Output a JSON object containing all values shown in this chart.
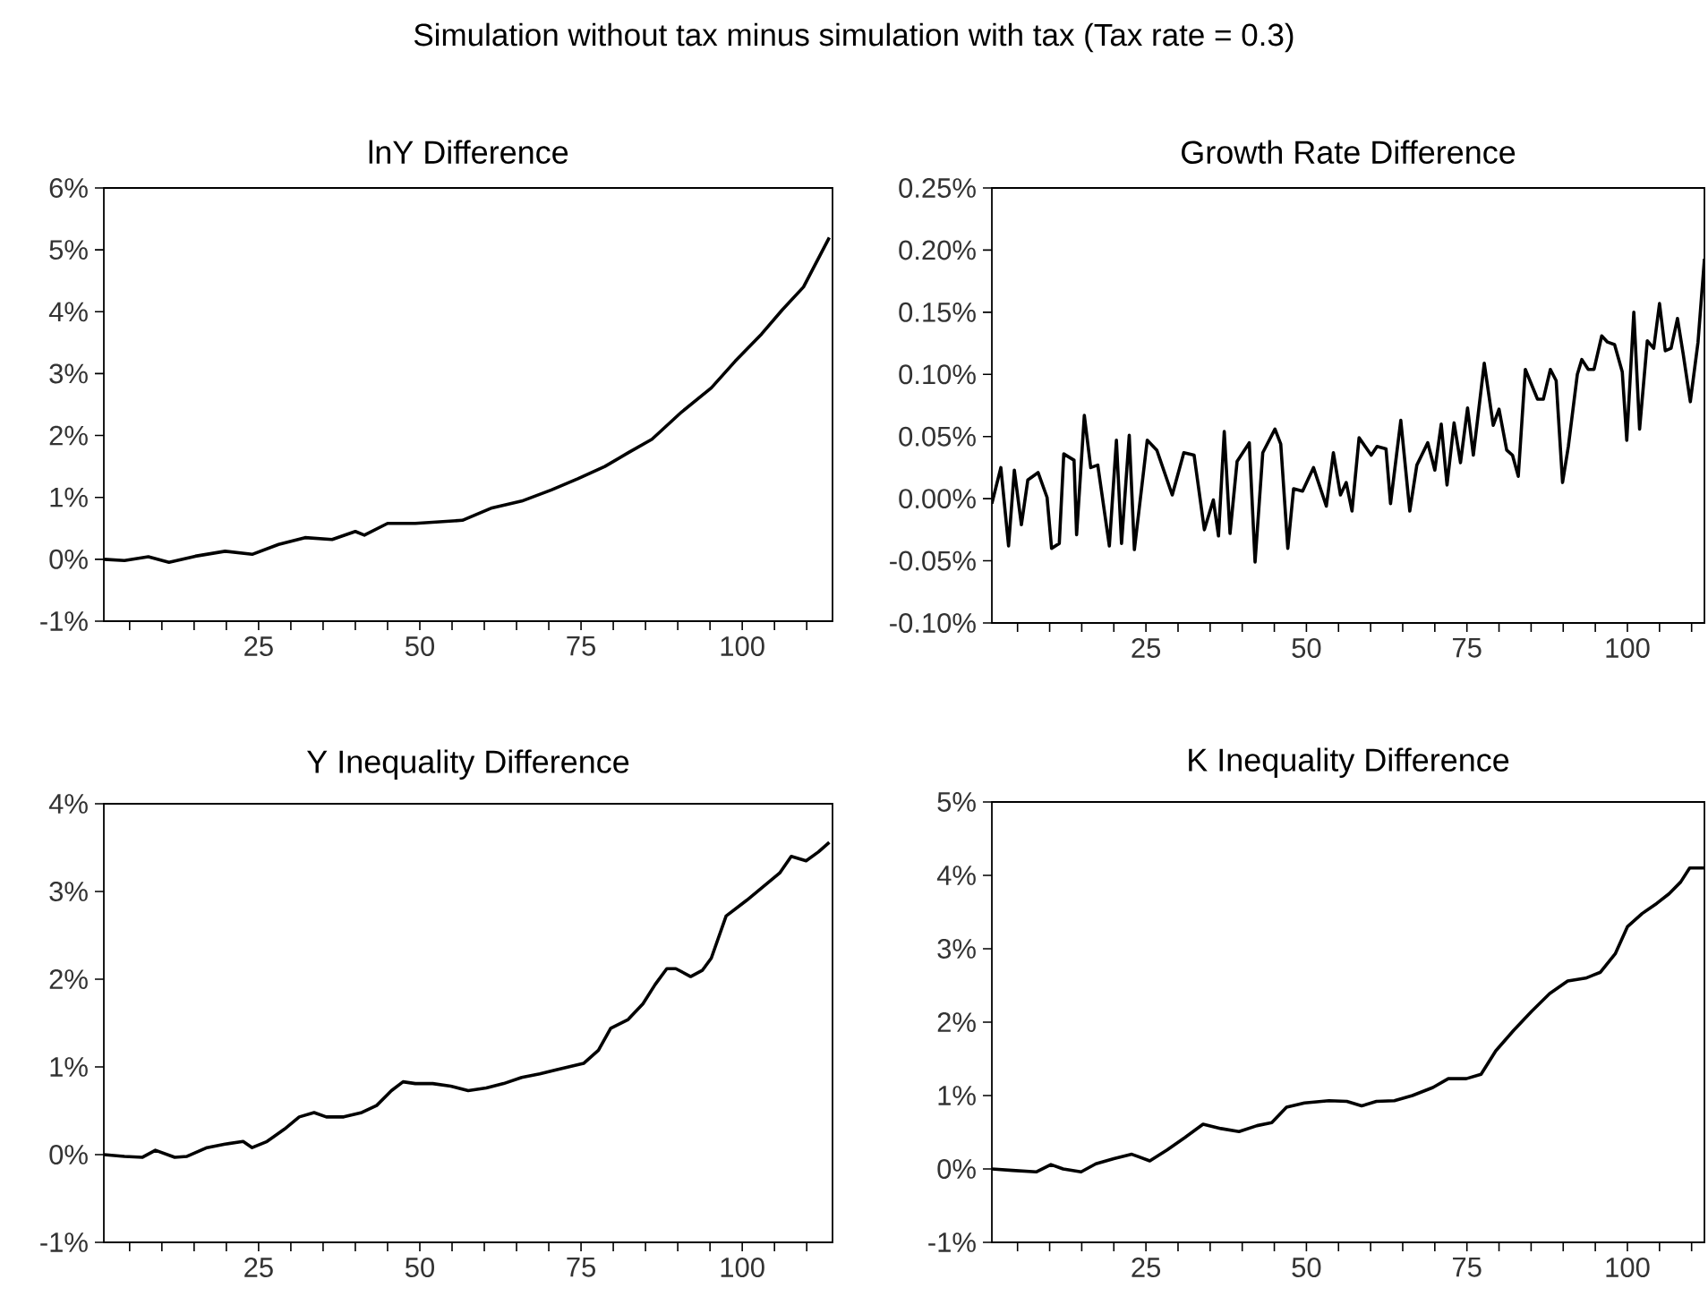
{
  "chart_data": [
    {
      "type": "line",
      "title": "Simulation without tax minus simulation with tax (Tax rate = 0.3)",
      "subtitle": "lnY Difference",
      "color": "#000000",
      "xlim": [
        1,
        114
      ],
      "ylim": [
        -1,
        6
      ],
      "xticks": [
        {
          "value": 5,
          "label": null
        },
        {
          "value": 10,
          "label": null
        },
        {
          "value": 15,
          "label": null
        },
        {
          "value": 20,
          "label": null
        },
        25,
        {
          "value": 30,
          "label": null
        },
        {
          "value": 35,
          "label": null
        },
        {
          "value": 40,
          "label": null
        },
        {
          "value": 45,
          "label": null
        },
        50,
        {
          "value": 55,
          "label": null
        },
        {
          "value": 60,
          "label": null
        },
        {
          "value": 65,
          "label": null
        },
        {
          "value": 70,
          "label": null
        },
        75,
        {
          "value": 80,
          "label": null
        },
        {
          "value": 85,
          "label": null
        },
        {
          "value": 90,
          "label": null
        },
        {
          "value": 95,
          "label": null
        },
        100,
        {
          "value": 105,
          "label": null
        },
        {
          "value": 110,
          "label": null
        }
      ],
      "yticks": [
        {
          "value": -1,
          "label": "-1%"
        },
        {
          "value": 0,
          "label": "0%"
        },
        {
          "value": 1,
          "label": "1%"
        },
        {
          "value": 2,
          "label": "2%"
        },
        {
          "value": 3,
          "label": "3%"
        },
        {
          "value": 4,
          "label": "4%"
        },
        {
          "value": 5,
          "label": "5%"
        },
        {
          "value": 6,
          "label": "6%"
        }
      ],
      "x": [
        1,
        4.2,
        7.9,
        11.1,
        15.2,
        19.8,
        24,
        28.1,
        32.2,
        36.4,
        40,
        41.4,
        45,
        49.3,
        56.6,
        61.2,
        65.8,
        70.4,
        74.5,
        78.7,
        82.3,
        86,
        90.6,
        95.2,
        98.9,
        103,
        106.2,
        109.5,
        113.5
      ],
      "values": [
        0,
        -0.02,
        0.04,
        -0.05,
        0.05,
        0.13,
        0.08,
        0.24,
        0.35,
        0.32,
        0.45,
        0.39,
        0.58,
        0.58,
        0.63,
        0.83,
        0.94,
        1.12,
        1.3,
        1.5,
        1.72,
        1.94,
        2.38,
        2.77,
        3.2,
        3.64,
        4.03,
        4.4,
        5.2
      ]
    },
    {
      "type": "line",
      "title": "Growth Rate Difference",
      "color": "#000000",
      "xlim": [
        1,
        112
      ],
      "ylim": [
        -0.1,
        0.25
      ],
      "xticks": [
        {
          "value": 5,
          "label": null
        },
        {
          "value": 10,
          "label": null
        },
        {
          "value": 15,
          "label": null
        },
        {
          "value": 20,
          "label": null
        },
        25,
        {
          "value": 30,
          "label": null
        },
        {
          "value": 35,
          "label": null
        },
        {
          "value": 40,
          "label": null
        },
        {
          "value": 45,
          "label": null
        },
        50,
        {
          "value": 55,
          "label": null
        },
        {
          "value": 60,
          "label": null
        },
        {
          "value": 65,
          "label": null
        },
        {
          "value": 70,
          "label": null
        },
        75,
        {
          "value": 80,
          "label": null
        },
        {
          "value": 85,
          "label": null
        },
        {
          "value": 90,
          "label": null
        },
        {
          "value": 95,
          "label": null
        },
        100,
        {
          "value": 105,
          "label": null
        },
        {
          "value": 110,
          "label": null
        }
      ],
      "yticks": [
        {
          "value": -0.1,
          "label": "-0.10%"
        },
        {
          "value": -0.05,
          "label": "-0.05%"
        },
        {
          "value": 0,
          "label": "0.00%"
        },
        {
          "value": 0.05,
          "label": "0.05%"
        },
        {
          "value": 0.1,
          "label": "0.10%"
        },
        {
          "value": 0.15,
          "label": "0.15%"
        },
        {
          "value": 0.2,
          "label": "0.20%"
        },
        {
          "value": 0.25,
          "label": "0.25%"
        }
      ],
      "x": [
        1,
        2.4,
        3.6,
        4.5,
        5.6,
        6.6,
        8.2,
        9.6,
        10.3,
        11.5,
        12.2,
        13.8,
        14.2,
        15.4,
        16.4,
        17.5,
        19.3,
        20.4,
        21.2,
        22.4,
        23.2,
        25.2,
        26.7,
        29.1,
        30.9,
        32.5,
        34.1,
        35.5,
        36.3,
        37.2,
        38.1,
        39.2,
        41.1,
        42,
        43.2,
        45.1,
        46,
        47.1,
        48,
        49.4,
        51.1,
        53.1,
        54.2,
        55.3,
        56.2,
        57.1,
        58.2,
        60.1,
        61,
        62.4,
        63.1,
        64.7,
        66.1,
        67.2,
        68.9,
        70,
        71,
        71.9,
        73,
        74,
        75.1,
        76,
        77.7,
        79.1,
        80,
        81.2,
        82.1,
        83,
        84.1,
        86,
        86.9,
        88,
        88.9,
        89.9,
        90.8,
        92.2,
        92.9,
        93.9,
        94.8,
        96,
        96.9,
        98,
        99.2,
        99.9,
        101,
        101.9,
        103.1,
        104.1,
        105,
        105.9,
        106.8,
        107.8,
        108.7,
        109.8,
        111,
        112
      ],
      "values": [
        -0.004,
        0.025,
        -0.038,
        0.023,
        -0.021,
        0.015,
        0.021,
        0.001,
        -0.04,
        -0.036,
        0.036,
        0.031,
        -0.029,
        0.067,
        0.025,
        0.027,
        -0.038,
        0.047,
        -0.036,
        0.051,
        -0.041,
        0.047,
        0.039,
        0.003,
        0.037,
        0.035,
        -0.025,
        -0.001,
        -0.03,
        0.054,
        -0.028,
        0.03,
        0.045,
        -0.051,
        0.037,
        0.056,
        0.044,
        -0.04,
        0.008,
        0.006,
        0.025,
        -0.006,
        0.037,
        0.003,
        0.013,
        -0.01,
        0.049,
        0.035,
        0.042,
        0.04,
        -0.004,
        0.063,
        -0.01,
        0.027,
        0.045,
        0.023,
        0.06,
        0.011,
        0.061,
        0.029,
        0.073,
        0.035,
        0.109,
        0.059,
        0.072,
        0.039,
        0.035,
        0.018,
        0.104,
        0.08,
        0.08,
        0.104,
        0.095,
        0.013,
        0.042,
        0.1,
        0.112,
        0.104,
        0.104,
        0.131,
        0.126,
        0.124,
        0.102,
        0.047,
        0.15,
        0.056,
        0.127,
        0.121,
        0.157,
        0.119,
        0.121,
        0.145,
        0.116,
        0.078,
        0.126,
        0.193
      ]
    },
    {
      "type": "line",
      "title": "Y Inequality Difference",
      "color": "#000000",
      "xlim": [
        1,
        114
      ],
      "ylim": [
        -1,
        4
      ],
      "xticks": [
        {
          "value": 5,
          "label": null
        },
        {
          "value": 10,
          "label": null
        },
        {
          "value": 15,
          "label": null
        },
        {
          "value": 20,
          "label": null
        },
        25,
        {
          "value": 30,
          "label": null
        },
        {
          "value": 35,
          "label": null
        },
        {
          "value": 40,
          "label": null
        },
        {
          "value": 45,
          "label": null
        },
        50,
        {
          "value": 55,
          "label": null
        },
        {
          "value": 60,
          "label": null
        },
        {
          "value": 65,
          "label": null
        },
        {
          "value": 70,
          "label": null
        },
        75,
        {
          "value": 80,
          "label": null
        },
        {
          "value": 85,
          "label": null
        },
        {
          "value": 90,
          "label": null
        },
        {
          "value": 95,
          "label": null
        },
        100,
        {
          "value": 105,
          "label": null
        },
        {
          "value": 110,
          "label": null
        }
      ],
      "yticks": [
        {
          "value": -1,
          "label": "-1%"
        },
        {
          "value": 0,
          "label": "0%"
        },
        {
          "value": 1,
          "label": "1%"
        },
        {
          "value": 2,
          "label": "2%"
        },
        {
          "value": 3,
          "label": "3%"
        },
        {
          "value": 4,
          "label": "4%"
        }
      ],
      "x": [
        1,
        4.2,
        7,
        9,
        12,
        13.9,
        17,
        19.8,
        22.6,
        24,
        26.3,
        29,
        31.3,
        33.6,
        35.5,
        38.2,
        41,
        43.3,
        45.6,
        47.4,
        49.3,
        52,
        54.8,
        57.5,
        60.3,
        63,
        65.8,
        68.6,
        71.3,
        75.4,
        77.7,
        79.6,
        82.3,
        84.6,
        86.5,
        88.3,
        89.7,
        92,
        93.8,
        95.2,
        97.5,
        100.7,
        103.5,
        105.8,
        107.6,
        109.9,
        111.8,
        113.5
      ],
      "values": [
        0,
        -0.02,
        -0.03,
        0.05,
        -0.03,
        -0.02,
        0.08,
        0.12,
        0.15,
        0.08,
        0.15,
        0.29,
        0.43,
        0.48,
        0.43,
        0.43,
        0.48,
        0.56,
        0.73,
        0.83,
        0.81,
        0.81,
        0.78,
        0.73,
        0.76,
        0.81,
        0.88,
        0.92,
        0.97,
        1.04,
        1.19,
        1.44,
        1.54,
        1.72,
        1.94,
        2.12,
        2.12,
        2.03,
        2.1,
        2.24,
        2.72,
        2.9,
        3.07,
        3.21,
        3.4,
        3.35,
        3.45,
        3.56
      ]
    },
    {
      "type": "line",
      "title": "K Inequality Difference",
      "color": "#000000",
      "xlim": [
        1,
        112
      ],
      "ylim": [
        -1,
        5
      ],
      "xticks": [
        {
          "value": 5,
          "label": null
        },
        {
          "value": 10,
          "label": null
        },
        {
          "value": 15,
          "label": null
        },
        {
          "value": 20,
          "label": null
        },
        25,
        {
          "value": 30,
          "label": null
        },
        {
          "value": 35,
          "label": null
        },
        {
          "value": 40,
          "label": null
        },
        {
          "value": 45,
          "label": null
        },
        50,
        {
          "value": 55,
          "label": null
        },
        {
          "value": 60,
          "label": null
        },
        {
          "value": 65,
          "label": null
        },
        {
          "value": 70,
          "label": null
        },
        75,
        {
          "value": 80,
          "label": null
        },
        {
          "value": 85,
          "label": null
        },
        {
          "value": 90,
          "label": null
        },
        {
          "value": 95,
          "label": null
        },
        100,
        {
          "value": 105,
          "label": null
        },
        {
          "value": 110,
          "label": null
        }
      ],
      "yticks": [
        {
          "value": -1,
          "label": "-1%"
        },
        {
          "value": 0,
          "label": "0%"
        },
        {
          "value": 1,
          "label": "1%"
        },
        {
          "value": 2,
          "label": "2%"
        },
        {
          "value": 3,
          "label": "3%"
        },
        {
          "value": 4,
          "label": "4%"
        },
        {
          "value": 5,
          "label": "5%"
        }
      ],
      "x": [
        1,
        4.2,
        7.9,
        10.2,
        12.1,
        14.9,
        17.2,
        20,
        22.8,
        25.6,
        28.3,
        31.1,
        33.9,
        36.7,
        39.5,
        42.3,
        44.6,
        46.9,
        49.7,
        53.5,
        56.3,
        58.6,
        60.9,
        63.7,
        66.5,
        69.7,
        72.1,
        74.9,
        77.2,
        79.5,
        82.3,
        85.1,
        87.9,
        90.7,
        93.5,
        95.8,
        98.1,
        100,
        102.3,
        104.6,
        106.5,
        108.3,
        109.7,
        112
      ],
      "values": [
        0,
        -0.02,
        -0.04,
        0.06,
        0,
        -0.04,
        0.07,
        0.14,
        0.2,
        0.11,
        0.26,
        0.43,
        0.61,
        0.55,
        0.51,
        0.59,
        0.63,
        0.84,
        0.9,
        0.93,
        0.92,
        0.86,
        0.92,
        0.93,
        1,
        1.11,
        1.23,
        1.23,
        1.29,
        1.61,
        1.89,
        2.15,
        2.39,
        2.56,
        2.6,
        2.68,
        2.93,
        3.3,
        3.48,
        3.62,
        3.75,
        3.91,
        4.1,
        4.1
      ]
    }
  ]
}
